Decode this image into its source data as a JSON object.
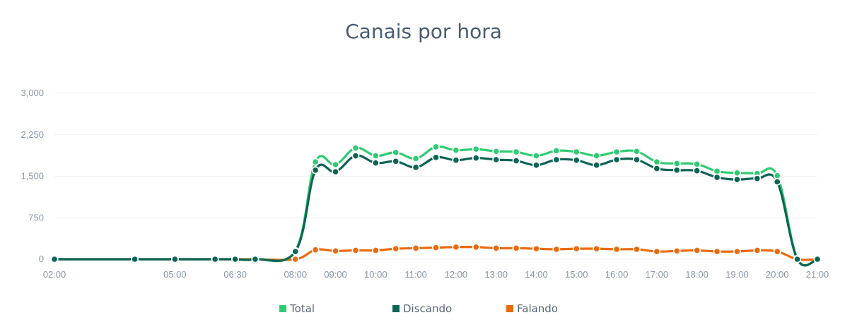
{
  "chart_data": {
    "type": "line",
    "title": "Canais por hora",
    "xlabel": "",
    "ylabel": "",
    "ylim": [
      0,
      3000
    ],
    "yticks": [
      "0",
      "750",
      "1,500",
      "2,250",
      "3,000"
    ],
    "ytick_values": [
      0,
      750,
      1500,
      2250,
      3000
    ],
    "xticks": [
      "02:00",
      "05:00",
      "06:30",
      "08:00",
      "09:00",
      "10:00",
      "11:00",
      "12:00",
      "13:00",
      "14:00",
      "15:00",
      "16:00",
      "17:00",
      "18:00",
      "19:00",
      "20:00",
      "21:00"
    ],
    "x": [
      "02:00",
      "04:00",
      "05:00",
      "06:00",
      "06:30",
      "07:00",
      "08:00",
      "08:30",
      "09:00",
      "09:30",
      "10:00",
      "10:30",
      "11:00",
      "11:30",
      "12:00",
      "12:30",
      "13:00",
      "13:30",
      "14:00",
      "14:30",
      "15:00",
      "15:30",
      "16:00",
      "16:30",
      "17:00",
      "17:30",
      "18:00",
      "18:30",
      "19:00",
      "19:30",
      "20:00",
      "20:30",
      "21:00"
    ],
    "grid": true,
    "legend_position": "bottom",
    "series": [
      {
        "name": "Total",
        "color": "#2ecc71",
        "values": [
          0,
          0,
          0,
          0,
          0,
          0,
          150,
          1760,
          1710,
          2010,
          1870,
          1930,
          1820,
          2030,
          1970,
          1990,
          1950,
          1940,
          1870,
          1960,
          1940,
          1870,
          1940,
          1950,
          1760,
          1730,
          1720,
          1590,
          1560,
          1550,
          1510,
          10,
          0
        ]
      },
      {
        "name": "Discando",
        "color": "#0c6454",
        "values": [
          0,
          0,
          0,
          0,
          0,
          0,
          140,
          1610,
          1580,
          1870,
          1740,
          1770,
          1660,
          1840,
          1790,
          1830,
          1800,
          1780,
          1700,
          1800,
          1790,
          1700,
          1800,
          1800,
          1640,
          1610,
          1600,
          1480,
          1440,
          1460,
          1400,
          0,
          0
        ]
      },
      {
        "name": "Falando",
        "color": "#ed6a0b",
        "values": [
          0,
          0,
          0,
          0,
          0,
          0,
          0,
          170,
          150,
          160,
          160,
          190,
          200,
          210,
          220,
          220,
          200,
          200,
          190,
          180,
          190,
          190,
          180,
          180,
          140,
          150,
          160,
          140,
          140,
          160,
          140,
          0,
          0
        ]
      }
    ]
  }
}
